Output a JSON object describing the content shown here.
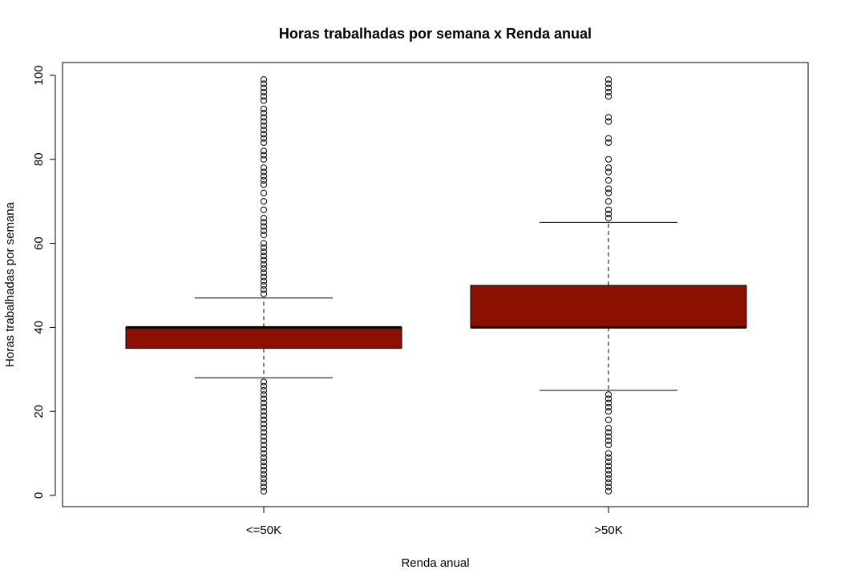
{
  "chart_data": {
    "type": "boxplot",
    "title": "Horas trabalhadas por semana x Renda anual",
    "xlabel": "Renda anual",
    "ylabel": "Horas trabalhadas por semana",
    "ylim": [
      0,
      100
    ],
    "yticks": [
      0,
      20,
      40,
      60,
      80,
      100
    ],
    "categories": [
      "<=50K",
      ">50K"
    ],
    "box_color": "#8B1000",
    "boxes": [
      {
        "category": "<=50K",
        "whisker_low": 28,
        "q1": 35,
        "median": 40,
        "q3": 40,
        "whisker_high": 47,
        "outliers": [
          1,
          2,
          3,
          4,
          5,
          6,
          7,
          8,
          9,
          10,
          11,
          12,
          13,
          14,
          15,
          16,
          17,
          18,
          19,
          20,
          21,
          22,
          23,
          24,
          25,
          26,
          27,
          48,
          49,
          50,
          51,
          52,
          53,
          54,
          55,
          56,
          57,
          58,
          59,
          60,
          62,
          63,
          64,
          65,
          66,
          68,
          70,
          72,
          74,
          75,
          76,
          77,
          78,
          80,
          81,
          82,
          84,
          85,
          86,
          87,
          88,
          89,
          90,
          91,
          92,
          94,
          95,
          96,
          97,
          98,
          99
        ]
      },
      {
        "category": ">50K",
        "whisker_low": 25,
        "q1": 40,
        "median": 40,
        "q3": 50,
        "whisker_high": 65,
        "outliers": [
          1,
          2,
          3,
          4,
          5,
          6,
          7,
          8,
          9,
          10,
          12,
          13,
          14,
          15,
          16,
          18,
          20,
          21,
          22,
          23,
          24,
          66,
          67,
          68,
          70,
          72,
          73,
          75,
          77,
          78,
          80,
          84,
          85,
          89,
          90,
          95,
          96,
          97,
          98,
          99
        ]
      }
    ],
    "grid": false
  }
}
